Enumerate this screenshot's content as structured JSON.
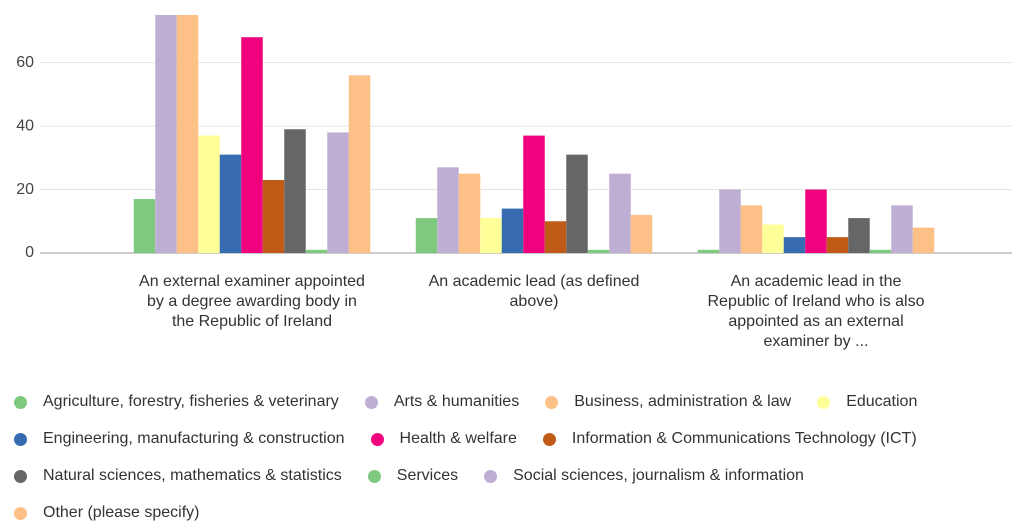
{
  "chart_data": {
    "type": "bar",
    "categories": [
      "An external examiner appointed by a degree awarding body in the Republic of Ireland",
      "An academic lead (as defined above)",
      "An academic lead in the Republic of Ireland who is also appointed as an external examiner by ..."
    ],
    "series": [
      {
        "name": "Agriculture, forestry, fisheries & veterinary",
        "color": "#7fc97f",
        "values": [
          17,
          11,
          1
        ]
      },
      {
        "name": "Arts & humanities",
        "color": "#beaed4",
        "values": [
          75,
          27,
          20
        ]
      },
      {
        "name": "Business, administration & law",
        "color": "#fdc086",
        "values": [
          75,
          25,
          15
        ]
      },
      {
        "name": "Education",
        "color": "#ffff99",
        "values": [
          37,
          11,
          9
        ]
      },
      {
        "name": "Engineering, manufacturing & construction",
        "color": "#386cb0",
        "values": [
          31,
          14,
          5
        ]
      },
      {
        "name": "Health & welfare",
        "color": "#f0027f",
        "values": [
          68,
          37,
          20
        ]
      },
      {
        "name": "Information & Communications Technology (ICT)",
        "color": "#bf5b17",
        "values": [
          23,
          10,
          5
        ]
      },
      {
        "name": "Natural sciences, mathematics & statistics",
        "color": "#666666",
        "values": [
          39,
          31,
          11
        ]
      },
      {
        "name": "Services",
        "color": "#7fc97f",
        "values": [
          1,
          1,
          1
        ]
      },
      {
        "name": "Social sciences, journalism & information",
        "color": "#beaed4",
        "values": [
          38,
          25,
          15
        ]
      },
      {
        "name": "Other (please specify)",
        "color": "#fdc086",
        "values": [
          56,
          12,
          8
        ]
      }
    ],
    "ylim": [
      0,
      75
    ],
    "yticks": [
      0,
      20,
      40,
      60
    ],
    "grid": true,
    "legend": "bottom"
  }
}
